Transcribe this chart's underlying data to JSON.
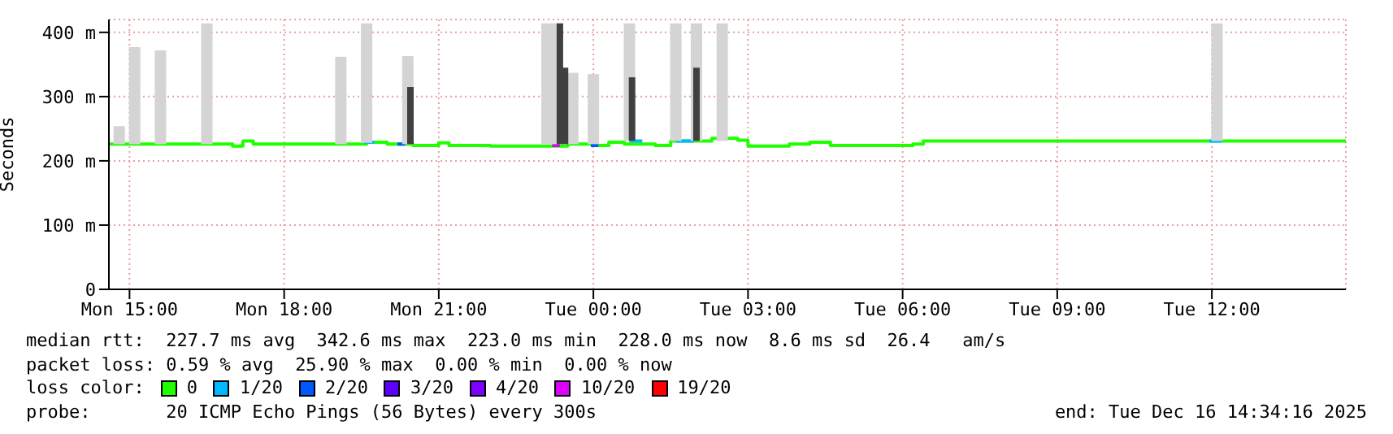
{
  "chart_data": {
    "type": "step",
    "ylabel": "Seconds",
    "xlim": [
      "2025-12-15T14:36",
      "2025-12-16T14:36"
    ],
    "xticks": [
      {
        "value": "2025-12-15T15:00",
        "label": "Mon 15:00"
      },
      {
        "value": "2025-12-15T18:00",
        "label": "Mon 18:00"
      },
      {
        "value": "2025-12-15T21:00",
        "label": "Mon 21:00"
      },
      {
        "value": "2025-12-16T00:00",
        "label": "Tue 00:00"
      },
      {
        "value": "2025-12-16T03:00",
        "label": "Tue 03:00"
      },
      {
        "value": "2025-12-16T06:00",
        "label": "Tue 06:00"
      },
      {
        "value": "2025-12-16T09:00",
        "label": "Tue 09:00"
      },
      {
        "value": "2025-12-16T12:00",
        "label": "Tue 12:00"
      }
    ],
    "ylim": [
      0,
      420
    ],
    "yticks": [
      0,
      {
        "value": 100,
        "label": "100 m"
      },
      {
        "value": 200,
        "label": "200 m"
      },
      {
        "value": 300,
        "label": "300 m"
      },
      {
        "value": 400,
        "label": "400 m"
      }
    ],
    "grid": true,
    "legend": "bottom",
    "legend_title": "loss color:",
    "series": [
      {
        "type": "bar",
        "color": "#d4d4d4",
        "x": [
          "2025-12-15T14:48",
          "2025-12-15T15:06",
          "2025-12-15T15:36",
          "2025-12-15T16:30",
          "2025-12-15T19:06",
          "2025-12-15T19:36",
          "2025-12-15T20:24",
          "2025-12-15T23:06",
          "2025-12-15T23:18",
          "2025-12-15T23:36",
          "2025-12-16T00:00",
          "2025-12-16T00:42",
          "2025-12-16T01:36",
          "2025-12-16T02:00",
          "2025-12-16T02:30",
          "2025-12-16T12:06"
        ],
        "base": [
          226,
          226,
          226,
          226,
          226,
          228,
          226,
          226,
          226,
          226,
          226,
          231,
          231,
          231,
          231,
          231
        ],
        "values": [
          28,
          151,
          146,
          188,
          136,
          186,
          137,
          188,
          188,
          111,
          109,
          183,
          183,
          183,
          183,
          183
        ]
      },
      {
        "type": "bar",
        "color": "#404040",
        "x": [
          "2025-12-15T20:27",
          "2025-12-15T23:21",
          "2025-12-15T23:27",
          "2025-12-16T00:45",
          "2025-12-16T02:00"
        ],
        "base": [
          226,
          226,
          226,
          231,
          231
        ],
        "values": [
          89,
          188,
          119,
          99,
          114
        ]
      },
      {
        "name": "0",
        "color": "#20ff00",
        "x": [
          "2025-12-15T14:36",
          "2025-12-15T16:00",
          "2025-12-15T17:00",
          "2025-12-15T17:12",
          "2025-12-15T17:24",
          "2025-12-15T19:24",
          "2025-12-15T19:36",
          "2025-12-15T20:00",
          "2025-12-15T20:30",
          "2025-12-15T21:00",
          "2025-12-15T21:12",
          "2025-12-15T22:00",
          "2025-12-15T23:00",
          "2025-12-15T23:30",
          "2025-12-16T00:00",
          "2025-12-16T00:18",
          "2025-12-16T00:36",
          "2025-12-16T01:12",
          "2025-12-16T01:30",
          "2025-12-16T02:18",
          "2025-12-16T02:48",
          "2025-12-16T03:00",
          "2025-12-16T03:48",
          "2025-12-16T04:12",
          "2025-12-16T04:36",
          "2025-12-16T05:00",
          "2025-12-16T06:12",
          "2025-12-16T06:24",
          "2025-12-16T07:00",
          "2025-12-16T14:36"
        ],
        "values": [
          226,
          226,
          223,
          231,
          226,
          226,
          229,
          226,
          224,
          228,
          224,
          223,
          223,
          226,
          224,
          229,
          226,
          224,
          231,
          235,
          232,
          223,
          226,
          229,
          224,
          224,
          226,
          231,
          231,
          231
        ]
      },
      {
        "name": "1/20",
        "color": "#00b8ff",
        "x": [
          "2025-12-15T19:33",
          "2025-12-15T19:45",
          null,
          "2025-12-16T00:42",
          "2025-12-16T00:57",
          null,
          "2025-12-16T01:36",
          "2025-12-16T01:57",
          null,
          "2025-12-16T11:57",
          "2025-12-16T12:12"
        ],
        "values": [
          229,
          229,
          null,
          231,
          231,
          null,
          231,
          231,
          null,
          231,
          231
        ]
      },
      {
        "name": "2/20",
        "color": "#0059ff",
        "x": [
          "2025-12-15T20:12",
          "2025-12-15T20:21",
          null,
          "2025-12-15T23:57",
          "2025-12-16T00:06"
        ],
        "values": [
          226,
          226,
          null,
          224,
          224
        ]
      },
      {
        "name": "3/20",
        "color": "#5e00ff"
      },
      {
        "name": "4/20",
        "color": "#7e00ff"
      },
      {
        "name": "10/20",
        "color": "#dd00ff",
        "x": [
          "2025-12-15T23:12",
          "2025-12-15T23:21"
        ],
        "values": [
          224,
          224
        ]
      },
      {
        "name": "19/20",
        "color": "#ff0000"
      }
    ],
    "annotations": [
      "median rtt:  227.7 ms avg  342.6 ms max  223.0 ms min  228.0 ms now  8.6 ms sd  26.4   am/s",
      "packet loss: 0.59 % avg  25.90 % max  0.00 % min  0.00 % now",
      "probe:       20 ICMP Echo Pings (56 Bytes) every 300s",
      "end: Tue Dec 16 14:34:16 2025"
    ]
  }
}
